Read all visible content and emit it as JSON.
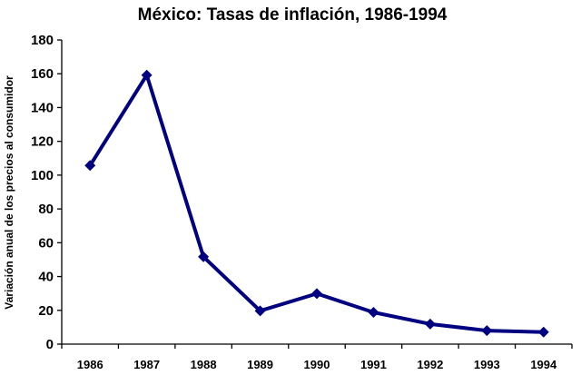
{
  "chart_data": {
    "type": "line",
    "title": "México: Tasas de inflación, 1986-1994",
    "xlabel": "",
    "ylabel": "Variación anual de los precios al consumidor",
    "categories": [
      "1986",
      "1987",
      "1988",
      "1989",
      "1990",
      "1991",
      "1992",
      "1993",
      "1994"
    ],
    "series": [
      {
        "values": [
          105.7,
          159.2,
          51.7,
          19.7,
          29.9,
          18.8,
          11.9,
          8.0,
          7.1
        ],
        "color": "#000080"
      }
    ],
    "ylim": [
      0,
      180
    ],
    "yticks": [
      "0",
      "20",
      "40",
      "60",
      "80",
      "100",
      "120",
      "140",
      "160",
      "180"
    ],
    "grid": false,
    "legend": "none",
    "marker": "diamond"
  }
}
